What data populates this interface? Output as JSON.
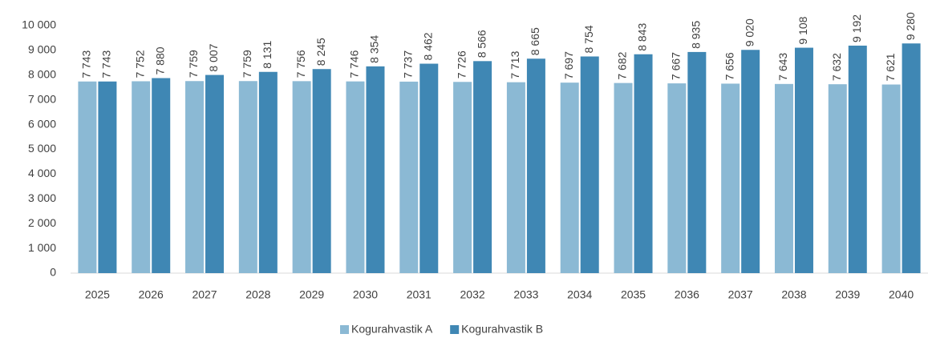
{
  "chart_data": {
    "type": "bar",
    "categories": [
      "2025",
      "2026",
      "2027",
      "2028",
      "2029",
      "2030",
      "2031",
      "2032",
      "2033",
      "2034",
      "2035",
      "2036",
      "2037",
      "2038",
      "2039",
      "2040"
    ],
    "series": [
      {
        "name": "Kogurahvastik A",
        "color": "#8bb9d4",
        "values": [
          7743,
          7752,
          7759,
          7759,
          7756,
          7746,
          7737,
          7726,
          7713,
          7697,
          7682,
          7667,
          7656,
          7643,
          7632,
          7621
        ],
        "value_labels": [
          "7 743",
          "7 752",
          "7 759",
          "7 759",
          "7 756",
          "7 746",
          "7 737",
          "7 726",
          "7 713",
          "7 697",
          "7 682",
          "7 667",
          "7 656",
          "7 643",
          "7 632",
          "7 621"
        ]
      },
      {
        "name": "Kogurahvastik B",
        "color": "#3f87b4",
        "values": [
          7743,
          7880,
          8007,
          8131,
          8245,
          8354,
          8462,
          8566,
          8665,
          8754,
          8843,
          8935,
          9020,
          9108,
          9192,
          9280
        ],
        "value_labels": [
          "7 743",
          "7 880",
          "8 007",
          "8 131",
          "8 245",
          "8 354",
          "8 462",
          "8 566",
          "8 665",
          "8 754",
          "8 843",
          "8 935",
          "9 020",
          "9 108",
          "9 192",
          "9 280"
        ]
      }
    ],
    "ylim": [
      0,
      10000
    ],
    "yticks": [
      0,
      {
        "value": 1000,
        "label": "1 000"
      },
      {
        "value": 2000,
        "label": "2 000"
      },
      {
        "value": 3000,
        "label": "3 000"
      },
      {
        "value": 4000,
        "label": "4 000"
      },
      {
        "value": 5000,
        "label": "5 000"
      },
      {
        "value": 6000,
        "label": "6 000"
      },
      {
        "value": 7000,
        "label": "7 000"
      },
      {
        "value": 8000,
        "label": "8 000"
      },
      {
        "value": 9000,
        "label": "9 000"
      },
      {
        "value": 10000,
        "label": "10 000"
      }
    ],
    "legend": "bottom"
  }
}
